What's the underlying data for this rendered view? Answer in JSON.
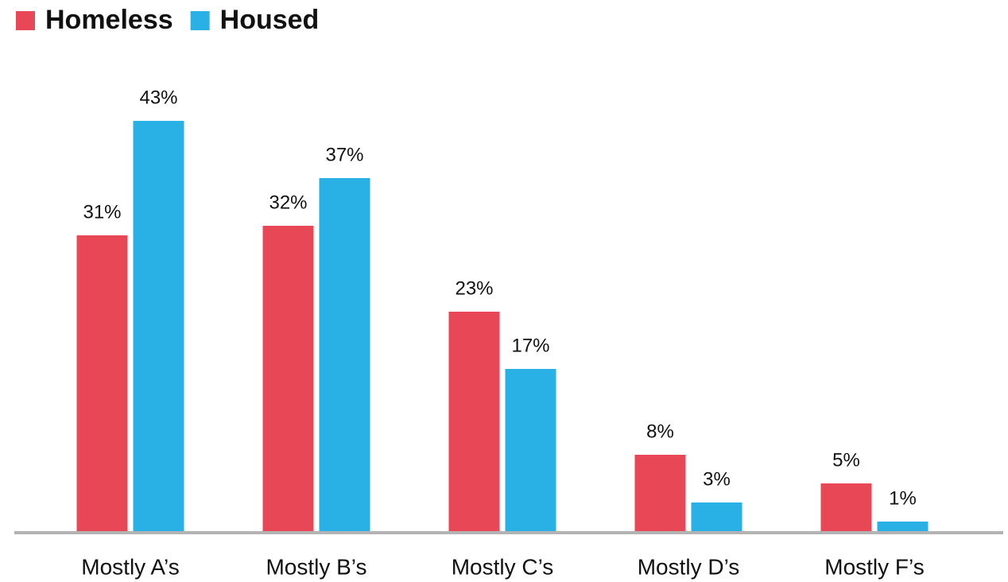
{
  "chart_data": {
    "type": "bar",
    "categories": [
      "Mostly A’s",
      "Mostly B’s",
      "Mostly C’s",
      "Mostly D’s",
      "Mostly F’s"
    ],
    "series": [
      {
        "name": "Homeless",
        "color": "#e84855",
        "values": [
          31,
          32,
          23,
          8,
          5
        ],
        "value_labels": [
          "31%",
          "32%",
          "23%",
          "8%",
          "5%"
        ]
      },
      {
        "name": "Housed",
        "color": "#29b0e4",
        "values": [
          43,
          37,
          17,
          3,
          1
        ],
        "value_labels": [
          "43%",
          "37%",
          "17%",
          "3%",
          "1%"
        ]
      }
    ],
    "legend": "top-left"
  }
}
